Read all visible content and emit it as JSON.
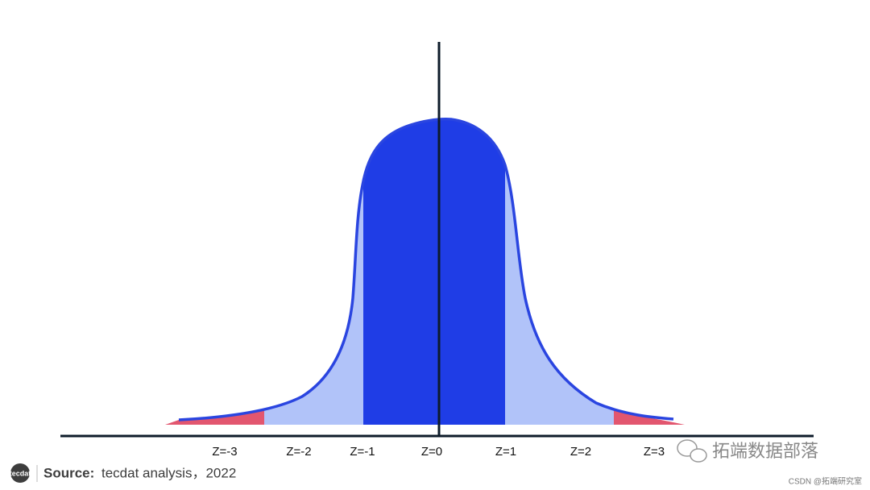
{
  "z_labels": [
    "Z=-3",
    "Z=-2",
    "Z=-1",
    "Z=0",
    "Z=1",
    "Z=2",
    "Z=3"
  ],
  "footer": {
    "logo": "tecdat",
    "source_label": "Source:",
    "source_text": "tecdat analysis，2022"
  },
  "watermark": {
    "brand": "拓端数据部落",
    "credit": "CSDN @拓端研究室"
  }
}
